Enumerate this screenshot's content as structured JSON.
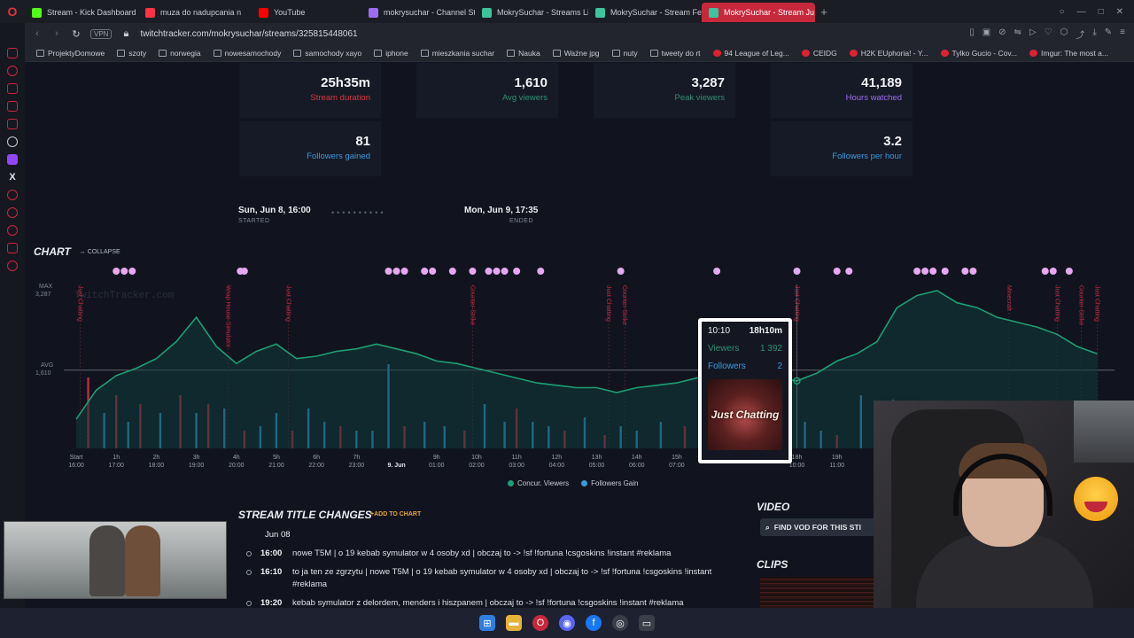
{
  "browser": {
    "tabs": [
      {
        "label": "Stream - Kick Dashboard",
        "color": "#53fc18"
      },
      {
        "label": "muza do nadupcania n",
        "color": "#ff3344"
      },
      {
        "label": "YouTube",
        "color": "#ff0000"
      },
      {
        "label": "mokrysuchar - Channel St",
        "color": "#9b6cf0"
      },
      {
        "label": "MokrySuchar - Streams Li",
        "color": "#3cc3a0"
      },
      {
        "label": "MokrySuchar - Stream Fe",
        "color": "#3cc3a0"
      },
      {
        "label": "MokrySuchar - Stream Ju",
        "color": "#3cc3a0",
        "active": true
      }
    ],
    "new_tab": "+",
    "vpn": "VPN",
    "url": "twitchtracker.com/mokrysuchar/streams/325815448061",
    "bookmarks": [
      "ProjektyDomowe",
      "szoty",
      "norwegia",
      "nowesamochody",
      "samochody xayo",
      "iphone",
      "mieszkania suchar",
      "Nauka",
      "Ważne jpg",
      "nuty",
      "tweety do rt",
      "94 League of Leg...",
      "CEIDG",
      "H2K EUphoria! - Y...",
      "Tylko Gucio - Cov...",
      "Imgur: The most a..."
    ]
  },
  "stats": {
    "duration": {
      "value": "25h35m",
      "label": "Stream duration",
      "color": "#e0343c"
    },
    "avg_viewers": {
      "value": "1,610",
      "label": "Avg viewers",
      "color": "#2f8f73"
    },
    "peak_viewers": {
      "value": "3,287",
      "label": "Peak viewers",
      "color": "#2f8f73"
    },
    "hours_watched": {
      "value": "41,189",
      "label": "Hours watched",
      "color": "#a06cf0"
    },
    "followers_gained": {
      "value": "81",
      "label": "Followers gained",
      "color": "#3a9bdc"
    },
    "followers_per_hour": {
      "value": "3.2",
      "label": "Followers per hour",
      "color": "#3a9bdc"
    }
  },
  "timeline": {
    "started": "Sun, Jun 8, 16:00",
    "started_label": "STARTED",
    "ended": "Mon, Jun 9, 17:35",
    "ended_label": "ENDED",
    "dots": "••••••••••"
  },
  "chart": {
    "title": "CHART",
    "collapse_label": "↔ COLLAPSE",
    "watermark": "TwitchTracker.com",
    "max_label": "MAX",
    "max_value": "3,287",
    "avg_label": "AVG",
    "avg_value": "1,610",
    "game_markers": [
      "Just Chatting",
      "Wrap House Simulator",
      "Just Chatting",
      "Counter-Strike",
      "Just Chatting",
      "Counter-Strike",
      "Just Chatting",
      "Minecraft",
      "Just Chatting",
      "Counter-Strike",
      "Just Chatting"
    ],
    "tooltip": {
      "time": "10:10",
      "elapsed": "18h10m",
      "viewers_label": "Viewers",
      "viewers_value": "1 392",
      "followers_label": "Followers",
      "followers_value": "2",
      "category_art": "Just Chatting"
    },
    "legend": [
      {
        "label": "Concur. Viewers",
        "color": "#1f9e74"
      },
      {
        "label": "Followers Gain",
        "color": "#3a9bdc"
      }
    ]
  },
  "chart_data": {
    "type": "line",
    "x_ticks": [
      "Start 16:00",
      "1h 17:00",
      "2h 18:00",
      "3h 19:00",
      "4h 20:00",
      "5h 21:00",
      "6h 22:00",
      "7h 23:00",
      "9. Jun",
      "9h 01:00",
      "10h 02:00",
      "11h 03:00",
      "12h 04:00",
      "13h 05:00",
      "14h 06:00",
      "15h 07:00",
      "18h 10:00",
      "19h 11:00"
    ],
    "series": [
      {
        "name": "Concur. Viewers",
        "color": "#1f9e74",
        "x_hours": [
          0,
          0.5,
          1,
          1.5,
          2,
          2.5,
          3,
          3.5,
          4,
          4.5,
          5,
          5.5,
          6,
          6.5,
          7,
          7.5,
          8,
          8.5,
          9,
          9.5,
          10,
          10.5,
          11,
          11.5,
          12,
          12.5,
          13,
          13.5,
          14,
          14.5,
          15,
          15.5,
          16,
          16.5,
          17,
          17.5,
          18,
          18.5,
          19,
          19.5,
          20,
          20.5,
          21,
          21.5,
          22,
          22.5,
          23,
          23.5,
          24,
          24.5,
          25,
          25.5
        ],
        "values": [
          600,
          1200,
          1500,
          1650,
          1850,
          2200,
          2700,
          2100,
          1750,
          2000,
          2150,
          1850,
          1900,
          2000,
          2050,
          2150,
          2050,
          1950,
          1800,
          1750,
          1650,
          1550,
          1450,
          1350,
          1300,
          1250,
          1250,
          1150,
          1250,
          1300,
          1350,
          1450,
          1500,
          1550,
          1500,
          1450,
          1392,
          1550,
          1800,
          1950,
          2200,
          2900,
          3150,
          3250,
          3000,
          2900,
          2700,
          2600,
          2500,
          2350,
          2100,
          1950
        ]
      },
      {
        "name": "Followers Gain",
        "color": "#3a9bdc"
      }
    ],
    "max": 3287,
    "avg": 1610
  },
  "title_changes": {
    "title": "STREAM TITLE CHANGES",
    "add_label": "+ADD TO CHART",
    "date": "Jun 08",
    "entries": [
      {
        "time": "16:00",
        "text": "nowe T5M | o 19 kebab symulator w 4 osoby xd | obczaj to -> !sf !fortuna !csgoskins !instant #reklama"
      },
      {
        "time": "16:10",
        "text": "to ja ten ze zgrzytu | nowe T5M | o 19 kebab symulator w 4 osoby xd | obczaj to -> !sf !fortuna !csgoskins !instant #reklama"
      },
      {
        "time": "19:20",
        "text": "kebab symulator z delordem, menders i hiszpanem | obczaj to -> !sf !fortuna !csgoskins !instant #reklama"
      }
    ]
  },
  "video": {
    "title": "VIDEO",
    "vod_button": "FIND VOD FOR THIS STI"
  },
  "clips": {
    "title": "CLIPS"
  }
}
